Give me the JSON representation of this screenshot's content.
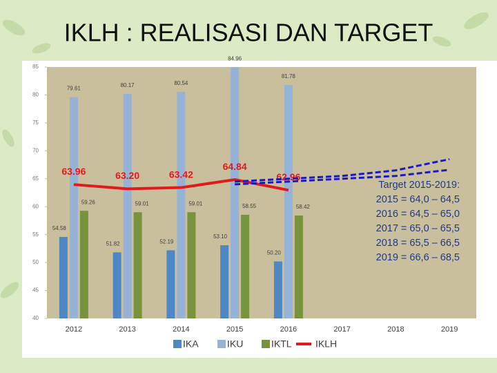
{
  "chart_data": {
    "type": "bar",
    "title": "IKLH : REALISASI DAN TARGET",
    "categories": [
      "2012",
      "2013",
      "2014",
      "2015",
      "2016",
      "2017",
      "2018",
      "2019"
    ],
    "ylim": [
      40,
      85
    ],
    "yticks": [
      40,
      45,
      50,
      55,
      60,
      65,
      70,
      75,
      80,
      85
    ],
    "series": [
      {
        "name": "IKA",
        "kind": "bar",
        "color": "#4f86c6",
        "values": [
          54.58,
          51.82,
          52.19,
          53.1,
          50.2,
          null,
          null,
          null
        ],
        "value_labels": [
          "54.58",
          "51.82",
          "52.19",
          "53.10",
          "50.20",
          null,
          null,
          null
        ]
      },
      {
        "name": "IKU",
        "kind": "bar",
        "color": "#95b3d7",
        "values": [
          79.61,
          80.17,
          80.54,
          84.96,
          81.78,
          null,
          null,
          null
        ],
        "value_labels": [
          "79.61",
          "80.17",
          "80.54",
          "84.96",
          "81.78",
          null,
          null,
          null
        ]
      },
      {
        "name": "IKTL",
        "kind": "bar",
        "color": "#77933c",
        "values": [
          59.26,
          59.01,
          59.01,
          58.55,
          58.42,
          null,
          null,
          null
        ],
        "value_labels": [
          "59.26",
          "59.01",
          "59.01",
          "58.55",
          "58.42",
          null,
          null,
          null
        ]
      },
      {
        "name": "IKLH",
        "kind": "line",
        "color": "#e31a1c",
        "values": [
          63.96,
          63.2,
          63.42,
          64.84,
          62.96,
          null,
          null,
          null
        ],
        "value_labels": [
          "63.96",
          "63.20",
          "63.42",
          "64.84",
          "62.96",
          null,
          null,
          null
        ]
      },
      {
        "kind": "dashed",
        "color": "#1a1ac8",
        "values": [
          null,
          null,
          null,
          64.0,
          64.5,
          65.0,
          65.5,
          66.6
        ]
      },
      {
        "kind": "dashed",
        "color": "#1a1ac8",
        "values": [
          null,
          null,
          null,
          64.5,
          65.0,
          65.5,
          66.5,
          68.5
        ]
      }
    ],
    "annotation": {
      "title": "Target 2015-2019:",
      "lines": [
        "2015 = 64,0 – 64,5",
        "2016 = 64,5 – 65,0",
        "2017 = 65,0 – 65,5",
        "2018 = 65,5 – 66,5",
        "2019 = 66,6 – 68,5"
      ]
    }
  }
}
